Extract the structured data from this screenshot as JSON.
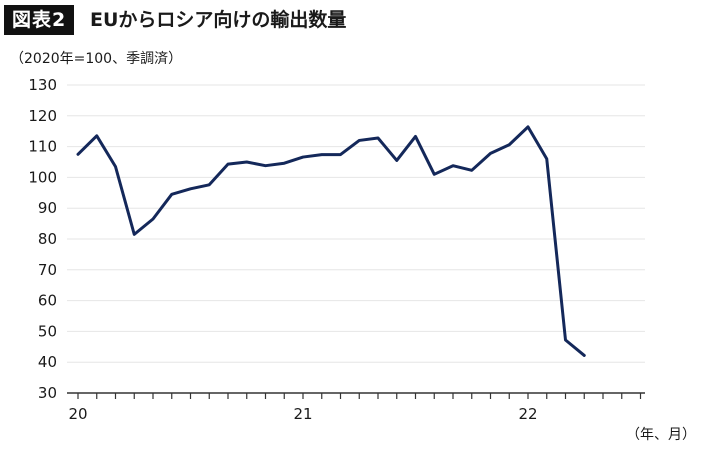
{
  "header": {
    "figure_tag": "図表2",
    "title": "EUからロシア向けの輸出数量"
  },
  "chart_data": {
    "type": "line",
    "title": "EUからロシア向けの輸出数量",
    "ylabel": "（2020年=100、季調済）",
    "xlabel": "（年、月）",
    "ylim": [
      30,
      130
    ],
    "yticks": [
      30,
      40,
      50,
      60,
      70,
      80,
      90,
      100,
      110,
      120,
      130
    ],
    "x_tick_labels": [
      {
        "label": "20",
        "index": 0
      },
      {
        "label": "21",
        "index": 12
      },
      {
        "label": "22",
        "index": 24
      }
    ],
    "x_tick_count": 31,
    "grid": true,
    "series": [
      {
        "color": "#14285a",
        "values": [
          107.5,
          113.5,
          103.5,
          81.5,
          86.5,
          94.5,
          96.3,
          97.6,
          104.3,
          105.0,
          103.8,
          104.6,
          106.6,
          107.4,
          107.4,
          112.0,
          112.8,
          105.5,
          113.3,
          101.0,
          103.8,
          102.3,
          107.8,
          110.6,
          116.4,
          106.0,
          47.2,
          42.2
        ]
      }
    ]
  }
}
